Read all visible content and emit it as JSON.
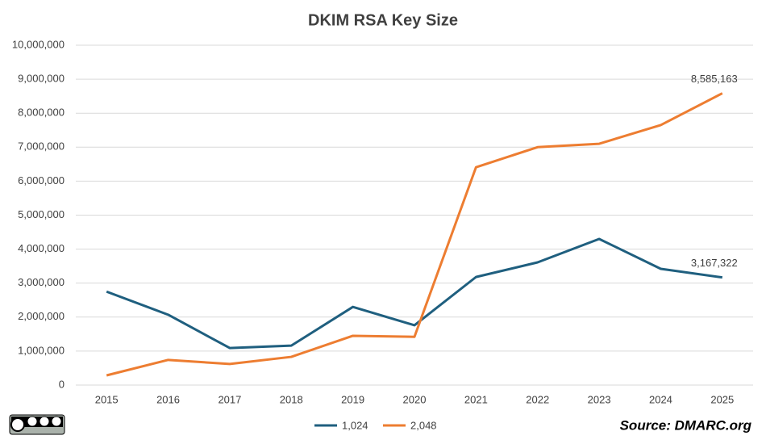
{
  "chart_data": {
    "type": "line",
    "title": "DKIM RSA Key Size",
    "categories": [
      "2015",
      "2016",
      "2017",
      "2018",
      "2019",
      "2020",
      "2021",
      "2022",
      "2023",
      "2024",
      "2025"
    ],
    "series": [
      {
        "name": "1,024",
        "color": "#1f5f7f",
        "values": [
          2750000,
          2070000,
          1090000,
          1160000,
          2300000,
          1760000,
          3180000,
          3610000,
          4300000,
          3420000,
          3167322
        ],
        "value_labels": [
          null,
          null,
          null,
          null,
          null,
          null,
          null,
          null,
          null,
          null,
          "3,167,322"
        ]
      },
      {
        "name": "2,048",
        "color": "#ed7d31",
        "values": [
          285000,
          740000,
          620000,
          830000,
          1450000,
          1420000,
          6410000,
          7000000,
          7100000,
          7650000,
          8585163
        ],
        "value_labels": [
          null,
          null,
          null,
          null,
          null,
          null,
          null,
          null,
          null,
          null,
          "8,585,163"
        ]
      }
    ],
    "ylim": [
      0,
      10000000
    ],
    "yticks": [
      {
        "value": 0,
        "label": "0"
      },
      {
        "value": 1000000,
        "label": "1,000,000"
      },
      {
        "value": 2000000,
        "label": "2,000,000"
      },
      {
        "value": 3000000,
        "label": "3,000,000"
      },
      {
        "value": 4000000,
        "label": "4,000,000"
      },
      {
        "value": 5000000,
        "label": "5,000,000"
      },
      {
        "value": 6000000,
        "label": "6,000,000"
      },
      {
        "value": 7000000,
        "label": "7,000,000"
      },
      {
        "value": 8000000,
        "label": "8,000,000"
      },
      {
        "value": 9000000,
        "label": "9,000,000"
      },
      {
        "value": 10000000,
        "label": "10,000,000"
      }
    ],
    "grid": true,
    "legend": "bottom",
    "source": "Source: DMARC.org"
  }
}
